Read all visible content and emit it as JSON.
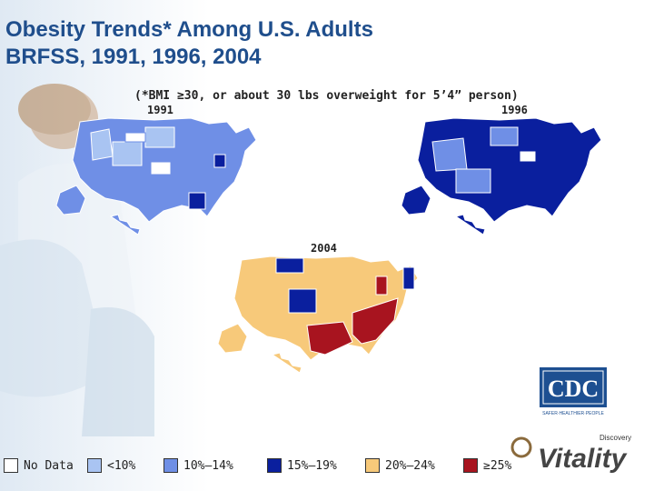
{
  "title": {
    "line1": "Obesity Trends* Among U.S. Adults",
    "line2": "BRFSS, 1991, 1996, 2004"
  },
  "footnote": "(*BMI ≥30, or about 30 lbs overweight for 5’4” person)",
  "maps": [
    {
      "year": "1991",
      "base_color": "#6f8fe6"
    },
    {
      "year": "1996",
      "base_color": "#0a1f9e"
    },
    {
      "year": "2004",
      "base_color": "#f7c97a"
    }
  ],
  "legend": [
    {
      "label": "No Data",
      "color": "#ffffff"
    },
    {
      "label": "<10%",
      "color": "#a9c4f2"
    },
    {
      "label": "10%–14%",
      "color": "#6f8fe6"
    },
    {
      "label": "15%–19%",
      "color": "#0a1f9e"
    },
    {
      "label": "20%–24%",
      "color": "#f7c97a"
    },
    {
      "label": "≥25%",
      "color": "#a8141f"
    }
  ],
  "logos": {
    "cdc": "CDC",
    "cdc_tagline": "SAFER·HEALTHIER·PEOPLE",
    "brand": "Vitality",
    "brand_prefix": "Discovery"
  }
}
